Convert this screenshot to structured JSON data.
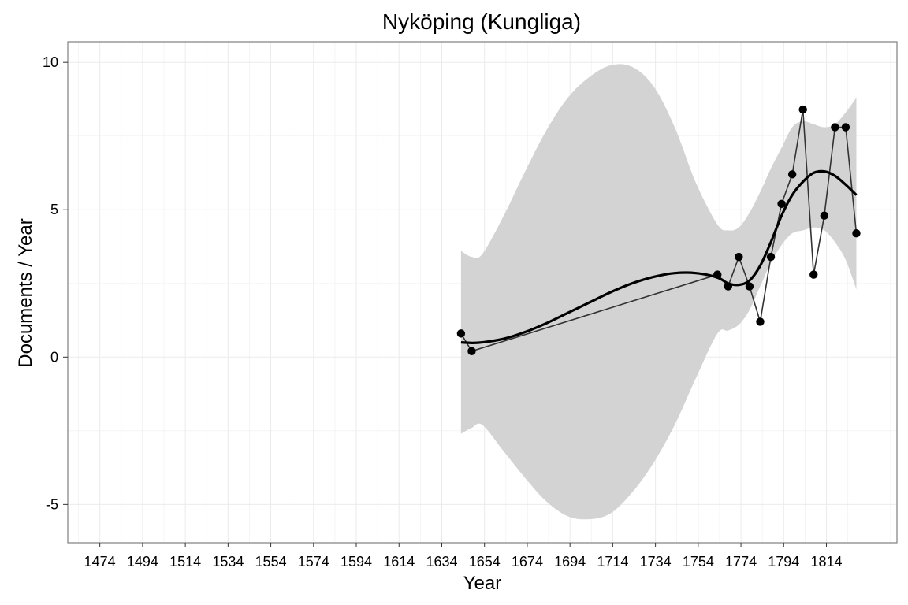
{
  "chart_data": {
    "type": "line",
    "title": "Nyköping (Kungliga)",
    "xlabel": "Year",
    "ylabel": "Documents / Year",
    "xlim": [
      1459,
      1847
    ],
    "ylim": [
      -6.3,
      10.7
    ],
    "x_ticks": [
      1474,
      1494,
      1514,
      1534,
      1554,
      1574,
      1594,
      1614,
      1634,
      1654,
      1674,
      1694,
      1714,
      1734,
      1754,
      1774,
      1794,
      1814
    ],
    "y_ticks": [
      -5,
      0,
      5,
      10
    ],
    "y_tick_labels": [
      "-5",
      "0",
      "5",
      "10"
    ],
    "grid": true,
    "legend": "none",
    "series": [
      {
        "kind": "points-connected",
        "color": "#000000",
        "line_color": "#333333",
        "x": [
          1643,
          1648,
          1763,
          1768,
          1773,
          1778,
          1783,
          1788,
          1793,
          1798,
          1803,
          1808,
          1813,
          1818,
          1823,
          1828
        ],
        "y": [
          0.8,
          0.2,
          2.8,
          2.4,
          3.4,
          2.4,
          1.2,
          3.4,
          5.2,
          6.2,
          8.4,
          2.8,
          4.8,
          7.8,
          7.8,
          4.2
        ]
      },
      {
        "kind": "smooth",
        "color": "#000000",
        "x": [
          1643,
          1648,
          1653,
          1663,
          1673,
          1683,
          1693,
          1703,
          1713,
          1723,
          1733,
          1743,
          1753,
          1763,
          1768,
          1773,
          1778,
          1783,
          1788,
          1793,
          1798,
          1803,
          1808,
          1813,
          1818,
          1823,
          1828
        ],
        "y": [
          0.5,
          0.48,
          0.5,
          0.62,
          0.85,
          1.15,
          1.5,
          1.85,
          2.2,
          2.5,
          2.72,
          2.85,
          2.85,
          2.7,
          2.5,
          2.45,
          2.6,
          3.1,
          3.9,
          4.8,
          5.5,
          5.95,
          6.25,
          6.3,
          6.15,
          5.85,
          5.5
        ]
      }
    ],
    "confidence_band": {
      "color": "#d3d3d3",
      "x": [
        1643,
        1648,
        1653,
        1663,
        1673,
        1683,
        1693,
        1703,
        1713,
        1723,
        1733,
        1743,
        1753,
        1763,
        1768,
        1773,
        1778,
        1783,
        1788,
        1793,
        1798,
        1803,
        1808,
        1813,
        1818,
        1823,
        1828
      ],
      "upper": [
        3.6,
        3.4,
        3.5,
        4.8,
        6.3,
        7.7,
        8.8,
        9.5,
        9.9,
        9.85,
        9.2,
        7.8,
        5.9,
        4.5,
        4.3,
        4.4,
        4.9,
        5.6,
        6.4,
        7.1,
        7.8,
        8.0,
        7.9,
        7.8,
        7.9,
        8.3,
        8.8
      ],
      "lower": [
        -2.6,
        -2.4,
        -2.3,
        -3.2,
        -4.1,
        -4.9,
        -5.4,
        -5.5,
        -5.3,
        -4.6,
        -3.6,
        -2.3,
        -0.7,
        0.8,
        0.9,
        1.1,
        1.6,
        2.4,
        3.2,
        3.8,
        4.2,
        4.3,
        4.4,
        4.3,
        3.9,
        3.3,
        2.3
      ]
    }
  }
}
